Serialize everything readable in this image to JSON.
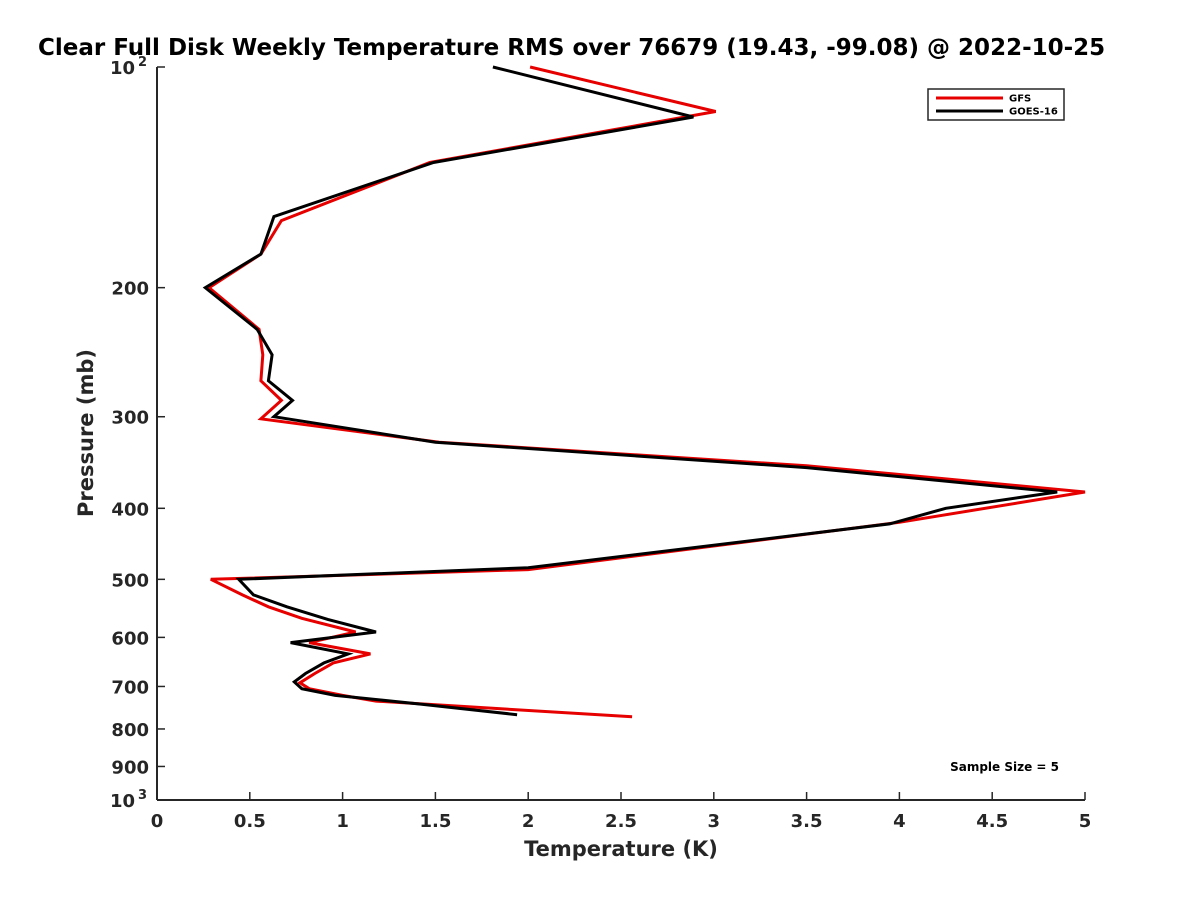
{
  "chart_data": {
    "type": "line",
    "title": "Clear Full Disk Weekly Temperature RMS over 76679 (19.43, -99.08) @ 2022-10-25",
    "xlabel": "Temperature (K)",
    "ylabel": "Pressure (mb)",
    "xlim": [
      0,
      5
    ],
    "ylim": [
      100,
      1000
    ],
    "y_scale": "log",
    "y_reversed": true,
    "x_ticks": [
      "0",
      "0.5",
      "1",
      "1.5",
      "2",
      "2.5",
      "3",
      "3.5",
      "4",
      "4.5",
      "5"
    ],
    "y_ticks": [
      {
        "value": 100,
        "label": "10",
        "sup": "2"
      },
      {
        "value": 200,
        "label": "200"
      },
      {
        "value": 300,
        "label": "300"
      },
      {
        "value": 400,
        "label": "400"
      },
      {
        "value": 500,
        "label": "500"
      },
      {
        "value": 600,
        "label": "600"
      },
      {
        "value": 700,
        "label": "700"
      },
      {
        "value": 800,
        "label": "800"
      },
      {
        "value": 900,
        "label": "900"
      },
      {
        "value": 1000,
        "label": "10",
        "sup": "3"
      }
    ],
    "grid": false,
    "legend_position": "top-right",
    "series": [
      {
        "name": "GFS",
        "color": "#e60000",
        "points": [
          [
            2.01,
            100
          ],
          [
            3.01,
            115
          ],
          [
            1.47,
            135
          ],
          [
            0.67,
            162
          ],
          [
            0.56,
            180
          ],
          [
            0.28,
            200
          ],
          [
            0.55,
            228
          ],
          [
            0.57,
            247
          ],
          [
            0.56,
            268
          ],
          [
            0.67,
            285
          ],
          [
            0.56,
            302
          ],
          [
            1.52,
            325
          ],
          [
            3.5,
            350
          ],
          [
            5.0,
            380
          ],
          [
            4.0,
            418
          ],
          [
            2.0,
            485
          ],
          [
            0.29,
            500
          ],
          [
            0.46,
            525
          ],
          [
            0.6,
            545
          ],
          [
            0.78,
            565
          ],
          [
            1.07,
            590
          ],
          [
            0.82,
            610
          ],
          [
            1.15,
            632
          ],
          [
            0.95,
            650
          ],
          [
            0.85,
            672
          ],
          [
            0.77,
            692
          ],
          [
            0.82,
            705
          ],
          [
            1.0,
            720
          ],
          [
            1.18,
            733
          ],
          [
            2.56,
            770
          ]
        ]
      },
      {
        "name": "GOES-16",
        "color": "#000000",
        "points": [
          [
            1.81,
            100
          ],
          [
            2.89,
            117
          ],
          [
            1.49,
            135
          ],
          [
            0.63,
            160
          ],
          [
            0.56,
            180
          ],
          [
            0.26,
            200
          ],
          [
            0.54,
            228
          ],
          [
            0.62,
            247
          ],
          [
            0.6,
            268
          ],
          [
            0.73,
            285
          ],
          [
            0.63,
            300
          ],
          [
            1.5,
            325
          ],
          [
            3.5,
            352
          ],
          [
            4.85,
            380
          ],
          [
            4.25,
            400
          ],
          [
            3.95,
            420
          ],
          [
            2.0,
            482
          ],
          [
            0.44,
            500
          ],
          [
            0.52,
            525
          ],
          [
            0.7,
            545
          ],
          [
            0.92,
            567
          ],
          [
            1.18,
            590
          ],
          [
            0.72,
            610
          ],
          [
            1.03,
            632
          ],
          [
            0.9,
            650
          ],
          [
            0.8,
            672
          ],
          [
            0.74,
            690
          ],
          [
            0.78,
            705
          ],
          [
            0.96,
            720
          ],
          [
            1.42,
            740
          ],
          [
            1.94,
            765
          ]
        ]
      }
    ],
    "annotation": "Sample Size = 5"
  }
}
